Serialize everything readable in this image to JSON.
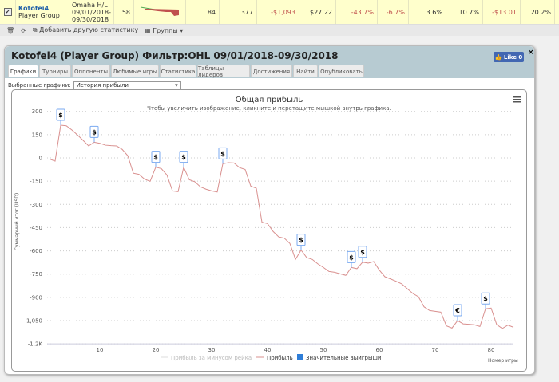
{
  "summary_row": {
    "player_name": "Kotofei4",
    "player_group": "Player Group",
    "game_line1": "Omaha H/L",
    "game_line2": "09/01/2018-",
    "game_line3": "09/30/2018",
    "count": "58",
    "col_84": "84",
    "col_377": "377",
    "profit": "-$1,093",
    "avg": "$27.22",
    "pct1": "-43.7%",
    "pct2": "-6.7%",
    "pct3": "3.6%",
    "pct4": "10.7%",
    "avg2": "-$13.01",
    "pct5": "20.2%"
  },
  "toolbar": {
    "add_stat": "Добавить другую статистику",
    "groups": "Группы"
  },
  "panel": {
    "title": "Kotofei4 (Player Group) Фильтр:OHL 09/01/2018-09/30/2018",
    "like": "Like 0",
    "tabs": [
      "Графики",
      "Турниры",
      "Оппоненты",
      "Любимые игры",
      "Статистика",
      "Таблицы лидеров",
      "Достижения",
      "Найти",
      "Опубликовать"
    ],
    "select_label": "Выбранные графики:",
    "select_value": "История прибыли"
  },
  "chart_data": {
    "type": "line",
    "title": "Общая прибыль",
    "subtitle": "Чтобы увеличить изображение, кликните и перетащите мышкой внутрь графика.",
    "xlabel": "Номер игры",
    "ylabel": "Суммарный итог (USD)",
    "ylim": [
      -1200,
      300
    ],
    "yticks": [
      "300",
      "150",
      "0",
      "-150",
      "-300",
      "-450",
      "-600",
      "-750",
      "-900",
      "-1,050",
      "-1.2K"
    ],
    "xticks": [
      "10",
      "20",
      "30",
      "40",
      "50",
      "60",
      "70",
      "80"
    ],
    "legend": [
      "Прибыль за минусом рейка",
      "Прибыль",
      "Значительные выигрыши"
    ],
    "series": [
      {
        "name": "Прибыль",
        "color": "#d9908f",
        "values": [
          -7,
          -21,
          211,
          207,
          180,
          148,
          113,
          77,
          101,
          94,
          82,
          79,
          77,
          55,
          14,
          -99,
          -106,
          -137,
          -151,
          -60,
          -69,
          -110,
          -213,
          -218,
          -60,
          -141,
          -154,
          -187,
          -202,
          -213,
          -220,
          -38,
          -31,
          -33,
          -63,
          -75,
          -182,
          -196,
          -415,
          -424,
          -475,
          -510,
          -518,
          -552,
          -655,
          -595,
          -643,
          -655,
          -684,
          -707,
          -733,
          -738,
          -748,
          -758,
          -707,
          -715,
          -673,
          -679,
          -669,
          -724,
          -767,
          -781,
          -796,
          -813,
          -844,
          -875,
          -896,
          -961,
          -985,
          -990,
          -995,
          -1084,
          -1098,
          -1050,
          -1071,
          -1074,
          -1077,
          -1088,
          -974,
          -969,
          -1076,
          -1101,
          -1079,
          -1093
        ]
      }
    ],
    "markers": [
      {
        "game": 3,
        "symbol": "$"
      },
      {
        "game": 9,
        "symbol": "$"
      },
      {
        "game": 20,
        "symbol": "$"
      },
      {
        "game": 25,
        "symbol": "$"
      },
      {
        "game": 32,
        "symbol": "$"
      },
      {
        "game": 46,
        "symbol": "$"
      },
      {
        "game": 55,
        "symbol": "$"
      },
      {
        "game": 57,
        "symbol": "$"
      },
      {
        "game": 74,
        "symbol": "€"
      },
      {
        "game": 79,
        "symbol": "$"
      }
    ]
  }
}
